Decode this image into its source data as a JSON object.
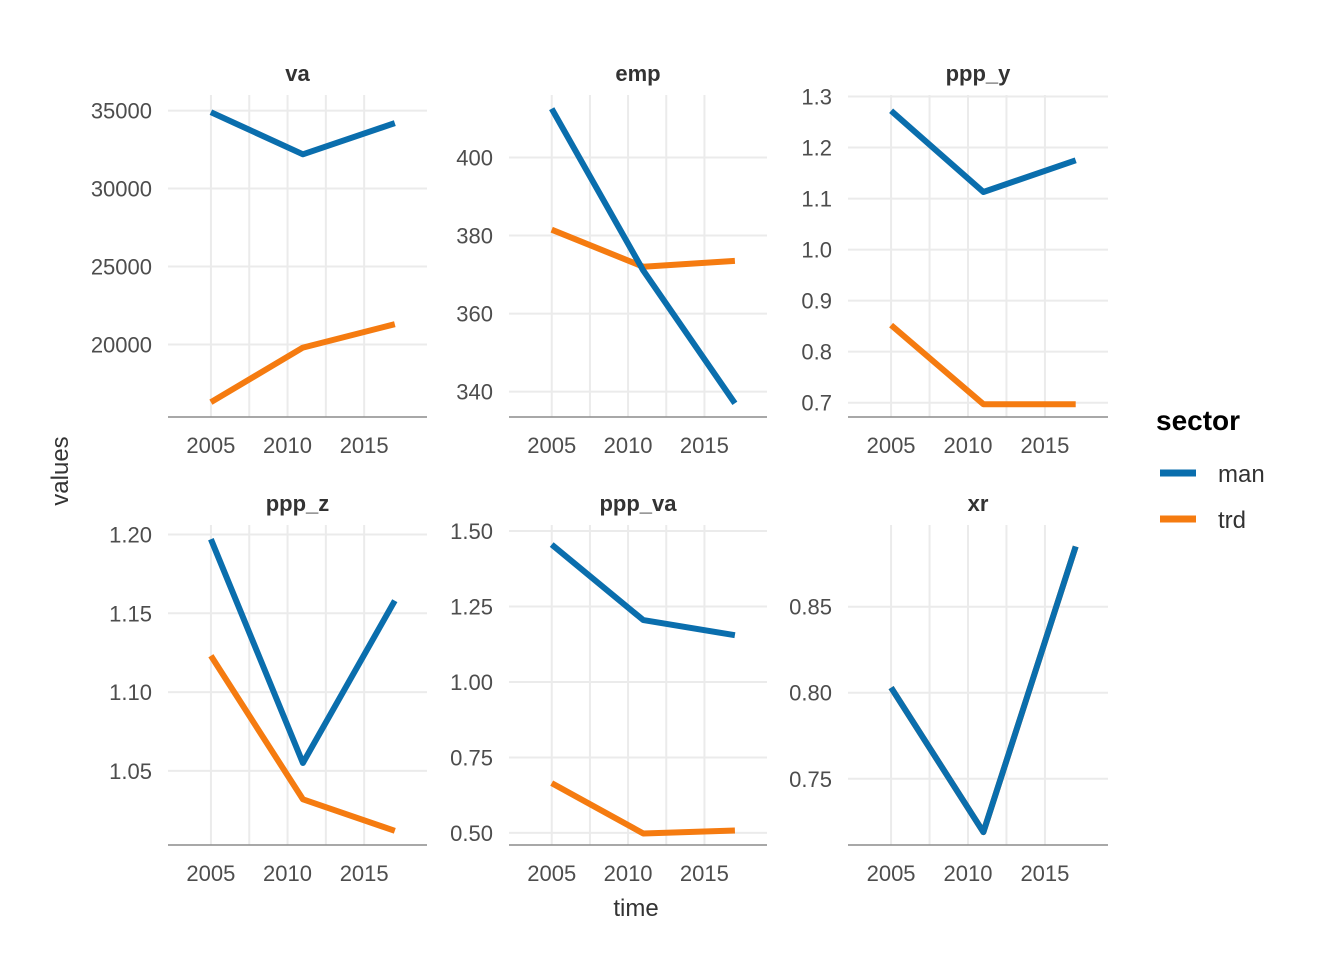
{
  "colors": {
    "man": "#0a6ead",
    "trd": "#f57b10"
  },
  "axis": {
    "xlabel": "time",
    "ylabel": "values"
  },
  "legend": {
    "title": "sector",
    "items": [
      {
        "key": "man",
        "label": "man",
        "color": "#0a6ead"
      },
      {
        "key": "trd",
        "label": "trd",
        "color": "#f57b10"
      }
    ]
  },
  "chart_data": [
    {
      "type": "line",
      "title": "va",
      "x": [
        2005,
        2011,
        2017
      ],
      "xticks": [
        2005,
        2010,
        2015
      ],
      "xlim": [
        2002.2,
        2019.1
      ],
      "yticks": [
        20000,
        25000,
        30000,
        35000
      ],
      "yticklabels": [
        "20000",
        "25000",
        "30000",
        "35000"
      ],
      "ylim": [
        15350,
        36000
      ],
      "series": [
        {
          "name": "man",
          "values": [
            34900,
            32200,
            34200
          ]
        },
        {
          "name": "trd",
          "values": [
            16300,
            19800,
            21300
          ]
        }
      ]
    },
    {
      "type": "line",
      "title": "emp",
      "x": [
        2005,
        2011,
        2017
      ],
      "xticks": [
        2005,
        2010,
        2015
      ],
      "xlim": [
        2002.2,
        2019.1
      ],
      "yticks": [
        340,
        360,
        380,
        400
      ],
      "yticklabels": [
        "340",
        "360",
        "380",
        "400"
      ],
      "ylim": [
        333.5,
        416
      ],
      "series": [
        {
          "name": "man",
          "values": [
            412.5,
            371,
            337
          ]
        },
        {
          "name": "trd",
          "values": [
            381.5,
            372,
            373.5
          ]
        }
      ]
    },
    {
      "type": "line",
      "title": "ppp_y",
      "x": [
        2005,
        2011,
        2017
      ],
      "xticks": [
        2005,
        2010,
        2015
      ],
      "xlim": [
        2002.2,
        2019.1
      ],
      "yticks": [
        0.7,
        0.8,
        0.9,
        1.0,
        1.1,
        1.2,
        1.3
      ],
      "yticklabels": [
        "0.7",
        "0.8",
        "0.9",
        "1.0",
        "1.1",
        "1.2",
        "1.3"
      ],
      "ylim": [
        0.672,
        1.303
      ],
      "series": [
        {
          "name": "man",
          "values": [
            1.272,
            1.113,
            1.175
          ]
        },
        {
          "name": "trd",
          "values": [
            0.852,
            0.697,
            0.697
          ]
        }
      ]
    },
    {
      "type": "line",
      "title": "ppp_z",
      "x": [
        2005,
        2011,
        2017
      ],
      "xticks": [
        2005,
        2010,
        2015
      ],
      "xlim": [
        2002.2,
        2019.1
      ],
      "yticks": [
        1.05,
        1.1,
        1.15,
        1.2
      ],
      "yticklabels": [
        "1.05",
        "1.10",
        "1.15",
        "1.20"
      ],
      "ylim": [
        1.003,
        1.206
      ],
      "series": [
        {
          "name": "man",
          "values": [
            1.197,
            1.055,
            1.158
          ]
        },
        {
          "name": "trd",
          "values": [
            1.123,
            1.032,
            1.012
          ]
        }
      ]
    },
    {
      "type": "line",
      "title": "ppp_va",
      "x": [
        2005,
        2011,
        2017
      ],
      "xticks": [
        2005,
        2010,
        2015
      ],
      "xlim": [
        2002.2,
        2019.1
      ],
      "yticks": [
        0.5,
        0.75,
        1.0,
        1.25,
        1.5
      ],
      "yticklabels": [
        "0.50",
        "0.75",
        "1.00",
        "1.25",
        "1.50"
      ],
      "ylim": [
        0.46,
        1.52
      ],
      "series": [
        {
          "name": "man",
          "values": [
            1.455,
            1.205,
            1.155
          ]
        },
        {
          "name": "trd",
          "values": [
            0.665,
            0.498,
            0.508
          ]
        }
      ]
    },
    {
      "type": "line",
      "title": "xr",
      "x": [
        2005,
        2011,
        2017
      ],
      "xticks": [
        2005,
        2010,
        2015
      ],
      "xlim": [
        2002.2,
        2019.1
      ],
      "yticks": [
        0.75,
        0.8,
        0.85
      ],
      "yticklabels": [
        "0.75",
        "0.80",
        "0.85"
      ],
      "ylim": [
        0.7115,
        0.8975
      ],
      "series": [
        {
          "name": "man",
          "values": [
            0.803,
            0.719,
            0.885
          ]
        },
        {
          "name": "trd",
          "values": [
            0.803,
            0.719,
            0.885
          ]
        }
      ]
    }
  ]
}
